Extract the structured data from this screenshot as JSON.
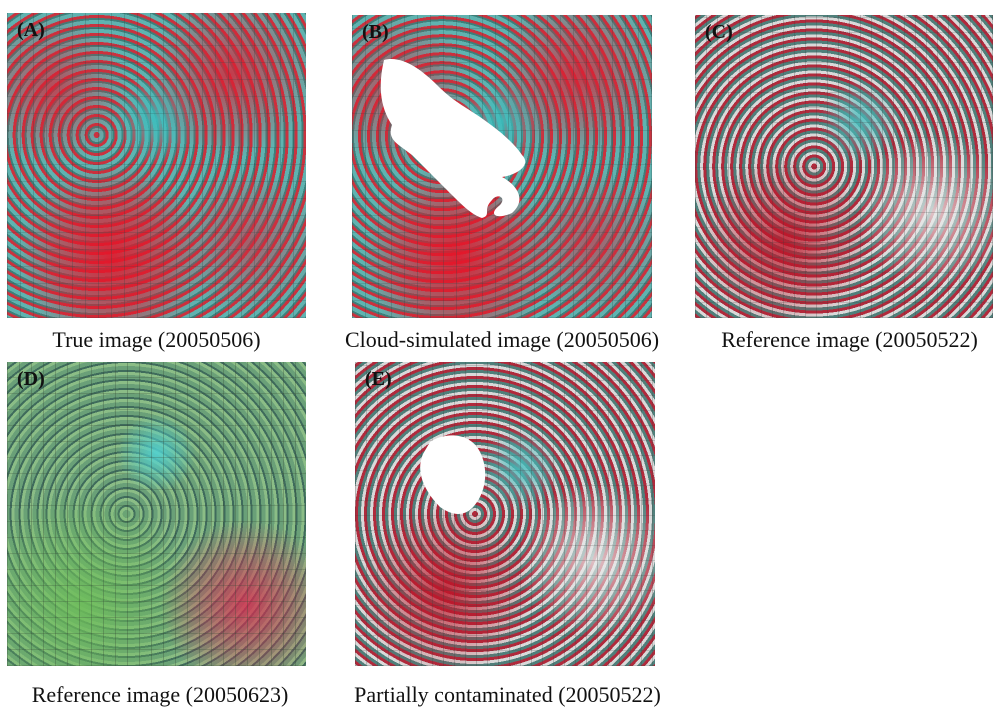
{
  "panels": [
    {
      "label": "(A)",
      "caption": "True image (20050506)"
    },
    {
      "label": "(B)",
      "caption": "Cloud-simulated image (20050506)"
    },
    {
      "label": "(C)",
      "caption": "Reference image (20050522)"
    },
    {
      "label": "(D)",
      "caption": "Reference image (20050623)"
    },
    {
      "label": "(E)",
      "caption": "Partially contaminated (20050522)"
    }
  ]
}
